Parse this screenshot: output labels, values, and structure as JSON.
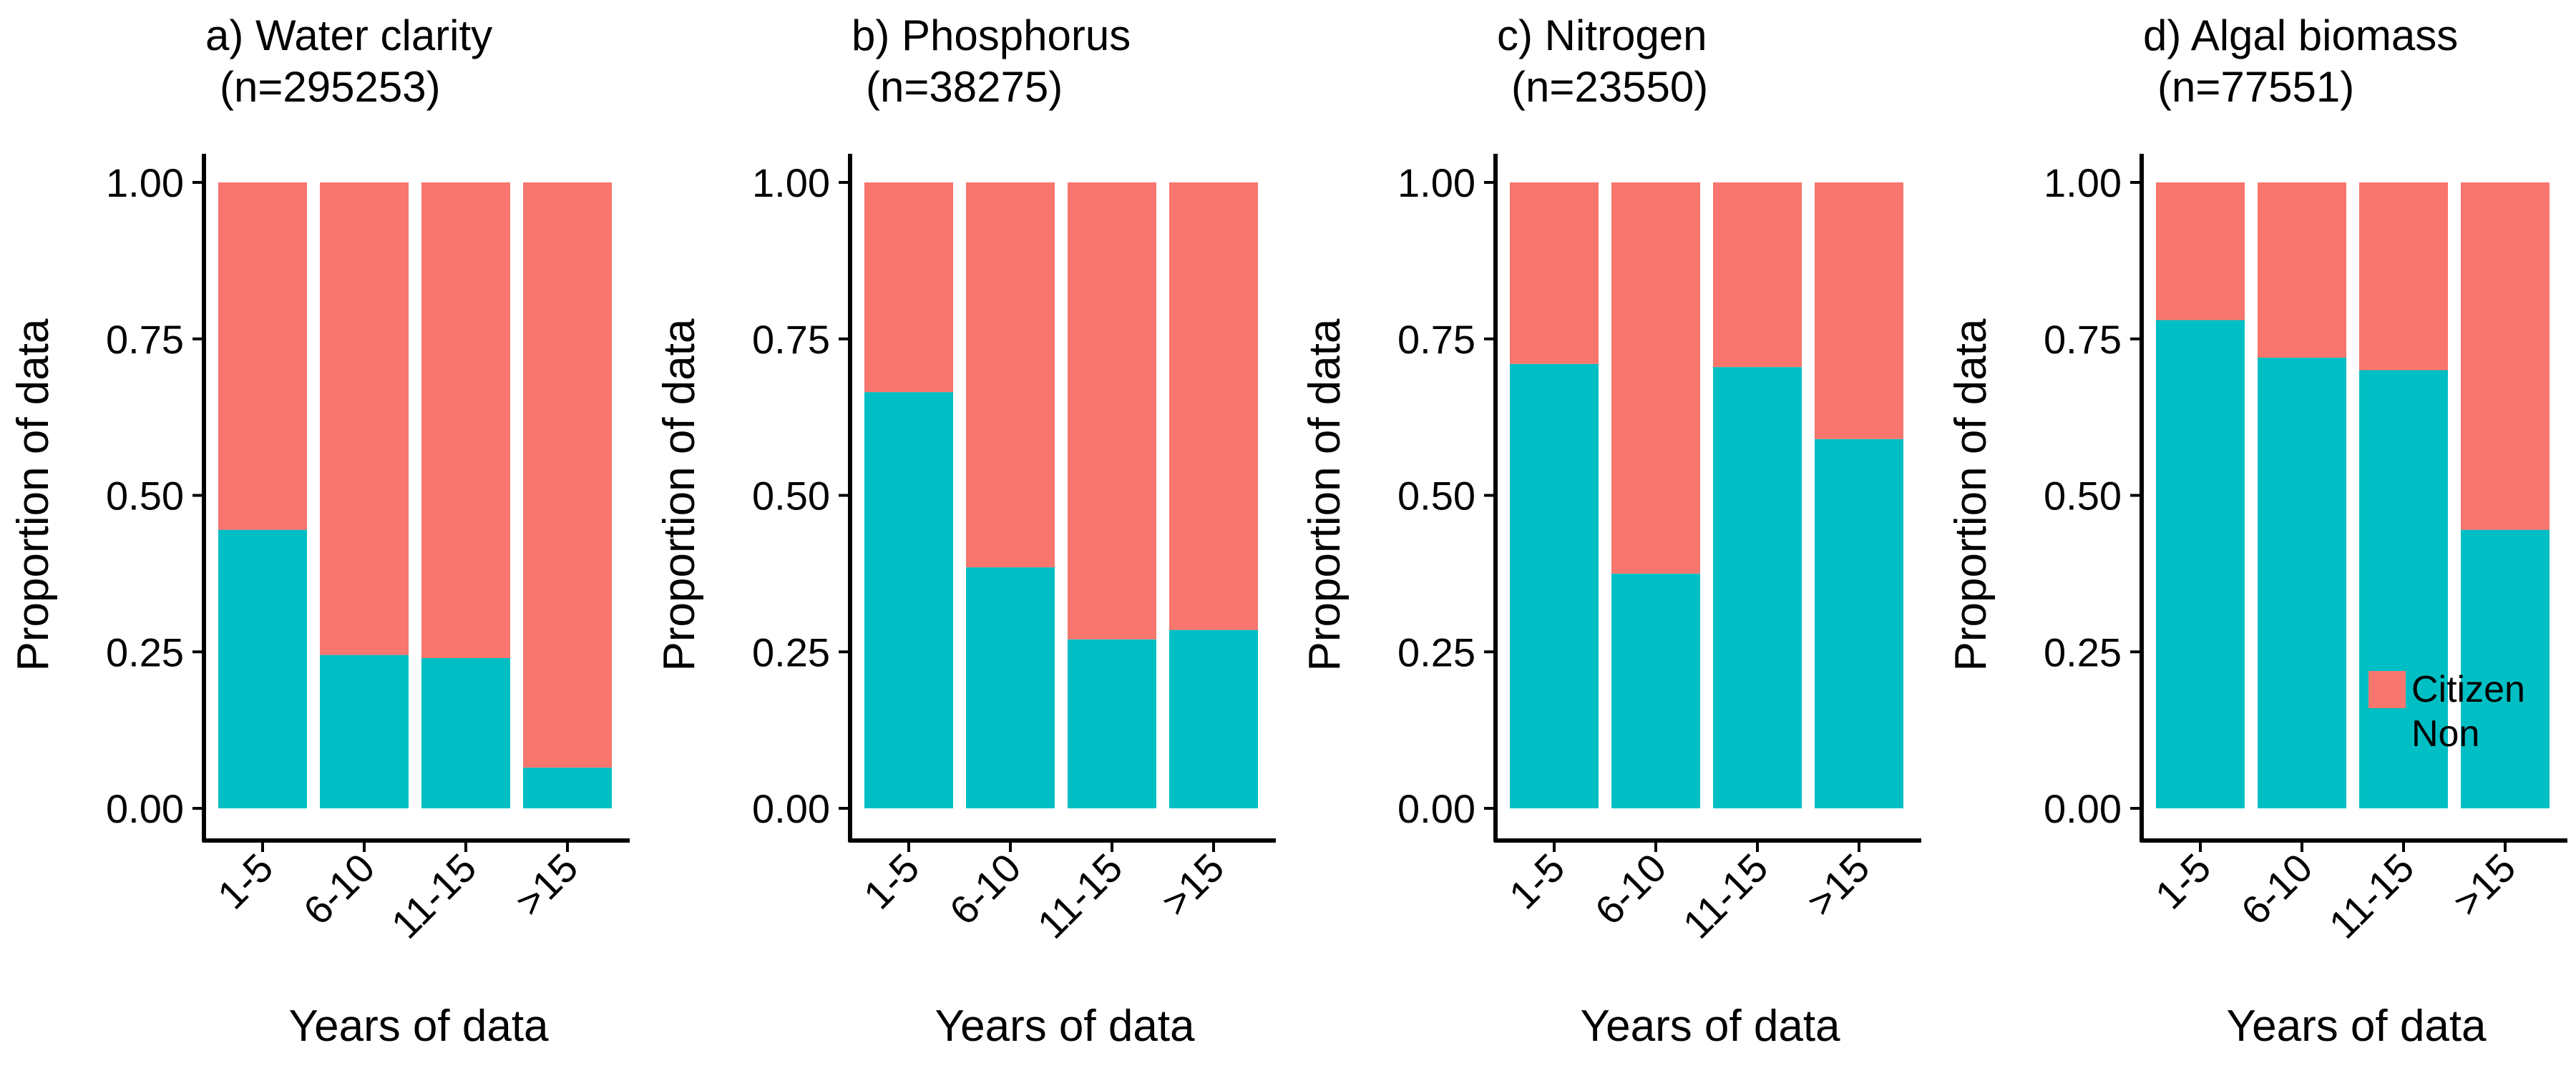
{
  "colors": {
    "citizen": "#F8766D",
    "non": "#00BFC4"
  },
  "legend": {
    "items": [
      {
        "label": "Citizen",
        "key": "citizen"
      },
      {
        "label": "Non",
        "key": "non"
      }
    ]
  },
  "chart_data": [
    {
      "type": "bar",
      "stacked": "proportion",
      "title": "a) Water clarity",
      "subtitle": "(n=295253)",
      "xlabel": "Years of data",
      "ylabel": "Proportion of data",
      "categories": [
        "1-5",
        "6-10",
        "11-15",
        ">15"
      ],
      "yticks": [
        "0.00",
        "0.25",
        "0.50",
        "0.75",
        "1.00"
      ],
      "ylim": [
        0,
        1
      ],
      "series": [
        {
          "name": "Non",
          "values": [
            0.445,
            0.245,
            0.24,
            0.065
          ]
        },
        {
          "name": "Citizen",
          "values": [
            0.555,
            0.755,
            0.76,
            0.935
          ]
        }
      ]
    },
    {
      "type": "bar",
      "stacked": "proportion",
      "title": "b) Phosphorus",
      "subtitle": "(n=38275)",
      "xlabel": "Years of data",
      "ylabel": "Proportion of data",
      "categories": [
        "1-5",
        "6-10",
        "11-15",
        ">15"
      ],
      "yticks": [
        "0.00",
        "0.25",
        "0.50",
        "0.75",
        "1.00"
      ],
      "ylim": [
        0,
        1
      ],
      "series": [
        {
          "name": "Non",
          "values": [
            0.665,
            0.385,
            0.27,
            0.285
          ]
        },
        {
          "name": "Citizen",
          "values": [
            0.335,
            0.615,
            0.73,
            0.715
          ]
        }
      ]
    },
    {
      "type": "bar",
      "stacked": "proportion",
      "title": "c) Nitrogen",
      "subtitle": "(n=23550)",
      "xlabel": "Years of data",
      "ylabel": "Proportion of data",
      "categories": [
        "1-5",
        "6-10",
        "11-15",
        ">15"
      ],
      "yticks": [
        "0.00",
        "0.25",
        "0.50",
        "0.75",
        "1.00"
      ],
      "ylim": [
        0,
        1
      ],
      "series": [
        {
          "name": "Non",
          "values": [
            0.71,
            0.375,
            0.705,
            0.59
          ]
        },
        {
          "name": "Citizen",
          "values": [
            0.29,
            0.625,
            0.295,
            0.41
          ]
        }
      ]
    },
    {
      "type": "bar",
      "stacked": "proportion",
      "title": "d) Algal biomass",
      "subtitle": "(n=77551)",
      "xlabel": "Years of data",
      "ylabel": "Proportion of data",
      "categories": [
        "1-5",
        "6-10",
        "11-15",
        ">15"
      ],
      "yticks": [
        "0.00",
        "0.25",
        "0.50",
        "0.75",
        "1.00"
      ],
      "ylim": [
        0,
        1
      ],
      "series": [
        {
          "name": "Non",
          "values": [
            0.78,
            0.72,
            0.7,
            0.445
          ]
        },
        {
          "name": "Citizen",
          "values": [
            0.22,
            0.28,
            0.3,
            0.555
          ]
        }
      ]
    }
  ]
}
